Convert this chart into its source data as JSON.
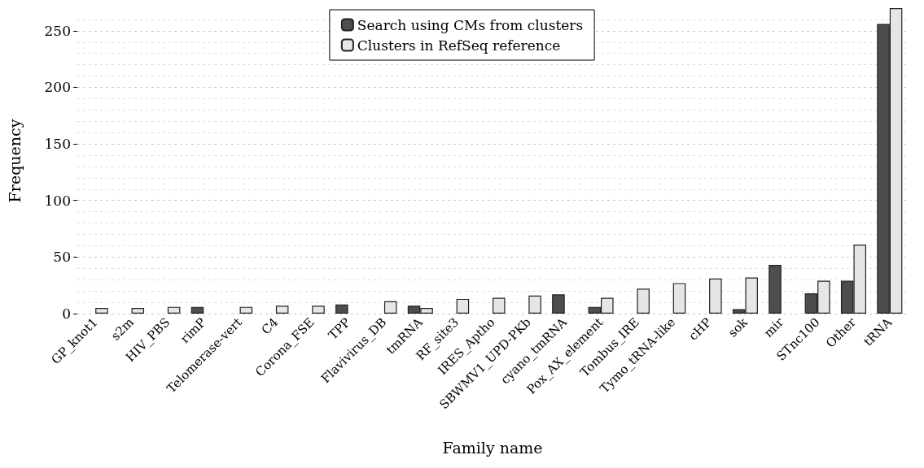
{
  "chart_data": {
    "type": "bar",
    "xlabel": "Family name",
    "ylabel": "Frequency",
    "categories": [
      "GP_knot1",
      "s2m",
      "HIV_PBS",
      "rimP",
      "Telomerase-vert",
      "C4",
      "Corona_FSE",
      "TPP",
      "Flavivirus_DB",
      "tmRNA",
      "RF_site3",
      "IRES_Aptho",
      "SBWMV1_UPD-PKb",
      "cyano_tmRNA",
      "Pox_AX_element",
      "Tombus_IRE",
      "Tymo_tRNA-like",
      "cHP",
      "sok",
      "mir",
      "STnc100",
      "Other",
      "tRNA"
    ],
    "series": [
      {
        "name": "Search using CMs from clusters",
        "color": "#4d4d4d",
        "values": [
          0,
          0,
          0,
          6,
          0,
          0,
          0,
          8,
          0,
          7,
          0,
          0,
          0,
          17,
          6,
          0,
          0,
          0,
          4,
          43,
          18,
          29,
          256
        ]
      },
      {
        "name": "Clusters in RefSeq reference",
        "color": "#e6e6e6",
        "values": [
          5,
          5,
          6,
          0,
          6,
          7,
          7,
          0,
          11,
          5,
          13,
          14,
          16,
          0,
          14,
          22,
          27,
          31,
          32,
          0,
          29,
          61,
          270
        ]
      }
    ],
    "ylim": [
      0,
      270
    ],
    "yticks": [
      0,
      50,
      100,
      150,
      200,
      250
    ],
    "grid": "y",
    "legend": "top"
  }
}
